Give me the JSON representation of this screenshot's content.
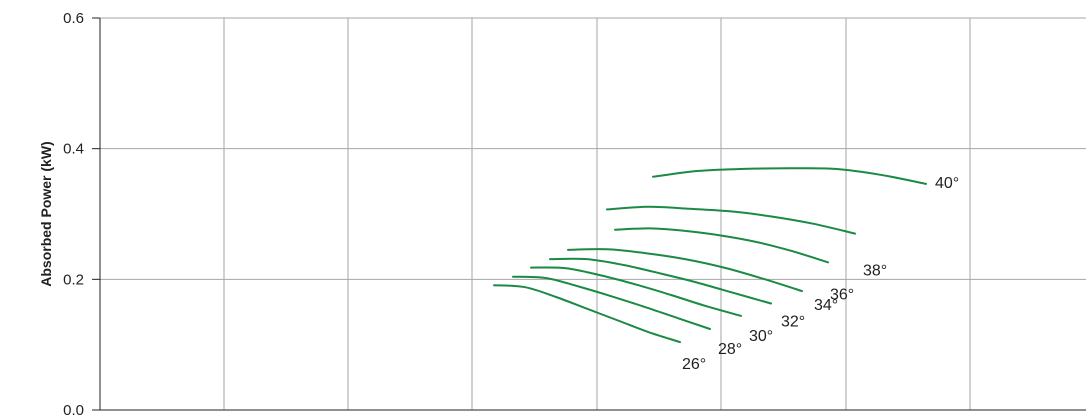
{
  "chart_data": {
    "type": "line",
    "title": "",
    "xlabel": "",
    "ylabel": "Absorbed Power (kW)",
    "ylim": [
      0,
      0.6
    ],
    "yticks": [
      "0.0",
      "0.2",
      "0.4",
      "0.6"
    ],
    "grid": true,
    "line_color": "#1a8a45",
    "grid_color": "#a6a6a6",
    "axis_color": "#231f20",
    "series": [
      {
        "name": "26°",
        "x": [
          0,
          1,
          2,
          3,
          4,
          5,
          6
        ],
        "values": [
          0.191,
          0.188,
          0.173,
          0.155,
          0.137,
          0.119,
          0.104
        ]
      },
      {
        "name": "28°",
        "x": [
          0,
          1,
          2,
          3,
          4,
          5,
          6
        ],
        "values": [
          0.204,
          0.202,
          0.189,
          0.174,
          0.158,
          0.141,
          0.124
        ]
      },
      {
        "name": "30°",
        "x": [
          0,
          1,
          2,
          3,
          4,
          5,
          6
        ],
        "values": [
          0.218,
          0.217,
          0.206,
          0.192,
          0.176,
          0.159,
          0.144
        ]
      },
      {
        "name": "32°",
        "x": [
          0,
          1,
          2,
          3,
          4,
          5,
          6
        ],
        "values": [
          0.231,
          0.231,
          0.222,
          0.209,
          0.195,
          0.179,
          0.163
        ]
      },
      {
        "name": "34°",
        "x": [
          0,
          1,
          2,
          3,
          4,
          5,
          6
        ],
        "values": [
          0.245,
          0.246,
          0.24,
          0.231,
          0.218,
          0.201,
          0.182
        ]
      },
      {
        "name": "36°",
        "x": [
          0,
          1,
          2,
          3,
          4,
          5,
          6
        ],
        "values": [
          0.276,
          0.278,
          0.274,
          0.267,
          0.257,
          0.243,
          0.226
        ]
      },
      {
        "name": "38°",
        "x": [
          0,
          1,
          2,
          3,
          4,
          5,
          6
        ],
        "values": [
          0.307,
          0.311,
          0.308,
          0.304,
          0.296,
          0.285,
          0.27
        ]
      },
      {
        "name": "40°",
        "x": [
          0,
          1,
          2,
          3,
          4,
          5,
          6
        ],
        "values": [
          0.357,
          0.366,
          0.369,
          0.37,
          0.369,
          0.36,
          0.346
        ]
      }
    ]
  }
}
